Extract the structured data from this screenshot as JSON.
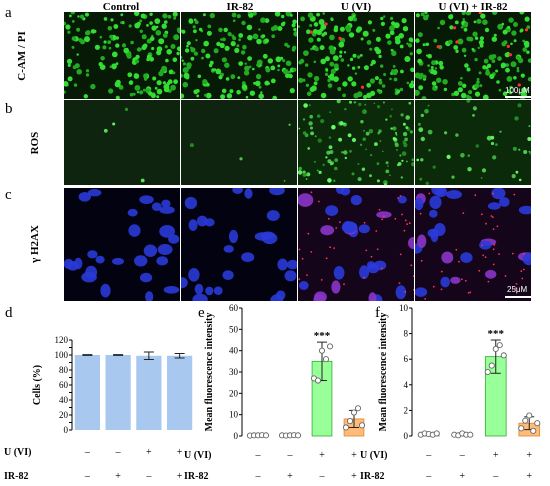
{
  "figure": {
    "panel_letters": [
      "a",
      "b",
      "c",
      "d",
      "e",
      "f"
    ],
    "columns": [
      "Control",
      "IR-82",
      "U (VI)",
      "U (VI) + IR-82"
    ],
    "rows": [
      "C-AM / PI",
      "ROS",
      "γ H2AX"
    ],
    "scale_bars": [
      "100μM",
      "25μM"
    ],
    "colors": {
      "green_bar": "#99ff99",
      "orange_bar": "#ffbb77",
      "blue_bar": "#a8c8f0"
    },
    "significance": "***"
  },
  "treatment_rows": {
    "labels": [
      "U (VI)",
      "IR-82"
    ],
    "u_vi": [
      "–",
      "–",
      "+",
      "+"
    ],
    "ir82": [
      "–",
      "+",
      "–",
      "+"
    ]
  },
  "chart_data": [
    {
      "panel": "d",
      "type": "bar",
      "categories": [
        "Control",
        "IR-82",
        "U (VI)",
        "U (VI) + IR-82"
      ],
      "values": [
        100,
        100,
        99,
        99
      ],
      "errors": [
        0.5,
        0.5,
        5,
        3
      ],
      "ylabel": "Cells (%)",
      "ylim": [
        0,
        120
      ],
      "yticks": [
        0,
        10,
        20,
        30,
        40,
        50,
        60,
        70,
        80,
        90,
        100,
        110,
        120
      ],
      "bar_color": "#a8c8f0"
    },
    {
      "panel": "e",
      "type": "bar",
      "categories": [
        "Control",
        "IR-82",
        "U (VI)",
        "U (VI) + IR-82"
      ],
      "values": [
        0.3,
        0.3,
        35,
        8
      ],
      "errors": [
        0,
        0,
        9,
        4
      ],
      "points": [
        [
          0.2,
          0.3,
          0.3,
          0.4,
          0.3
        ],
        [
          0.3,
          0.2,
          0.3,
          0.4,
          0.3
        ],
        [
          27,
          26,
          40,
          36,
          42
        ],
        [
          4,
          7,
          11,
          13,
          5
        ]
      ],
      "bar_colors": [
        "#ffffff",
        "#ffffff",
        "#99ff99",
        "#ffbb77"
      ],
      "ylabel": "Mean fluorescence intensity",
      "ylim": [
        0,
        60
      ],
      "yticks": [
        0,
        10,
        20,
        30,
        40,
        50,
        60
      ],
      "annotations": [
        "",
        "",
        "***",
        ""
      ]
    },
    {
      "panel": "f",
      "type": "bar",
      "categories": [
        "Control",
        "IR-82",
        "U (VI)",
        "U (VI) + IR-82"
      ],
      "values": [
        0.15,
        0.1,
        6.2,
        1.0
      ],
      "errors": [
        0.05,
        0.05,
        1.3,
        0.5
      ],
      "points": [
        [
          0.1,
          0.2,
          0.15,
          0.1,
          0.2
        ],
        [
          0.1,
          0.05,
          0.2,
          0.1,
          0.1
        ],
        [
          5,
          5.5,
          6.8,
          7.1,
          6.3
        ],
        [
          0.6,
          1.2,
          1.6,
          0.4,
          1.0
        ]
      ],
      "bar_colors": [
        "#ffffff",
        "#ffffff",
        "#99ff99",
        "#ffbb77"
      ],
      "ylabel": "Mean fluorescence intensity",
      "ylim": [
        0,
        10
      ],
      "yticks": [
        0,
        2,
        4,
        6,
        8,
        10
      ],
      "annotations": [
        "",
        "",
        "***",
        ""
      ]
    }
  ]
}
